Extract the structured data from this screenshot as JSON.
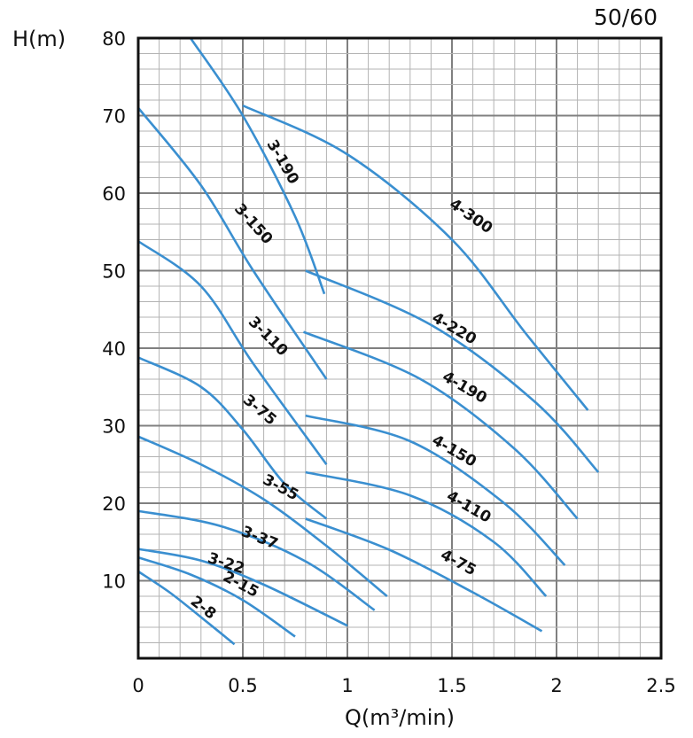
{
  "chart_data": {
    "type": "line",
    "title": "",
    "corner_label": "50/60",
    "xlabel": "Q(m³/min)",
    "ylabel": "H(m)",
    "xlim": [
      0,
      2.5
    ],
    "ylim": [
      0,
      80
    ],
    "x_ticks": [
      "0",
      "0.5",
      "1",
      "1.5",
      "2",
      "2.5"
    ],
    "y_ticks": [
      "10",
      "20",
      "30",
      "40",
      "50",
      "60",
      "70",
      "80"
    ],
    "grid": true,
    "series_color": "#3a8fd0",
    "series": [
      {
        "name": "2-8",
        "points": [
          [
            0,
            11.2
          ],
          [
            0.15,
            8.5
          ],
          [
            0.3,
            5.3
          ],
          [
            0.46,
            1.8
          ]
        ]
      },
      {
        "name": "2-15",
        "points": [
          [
            0,
            13
          ],
          [
            0.25,
            10.8
          ],
          [
            0.5,
            7.5
          ],
          [
            0.75,
            2.8
          ]
        ]
      },
      {
        "name": "3-22",
        "points": [
          [
            0,
            14.1
          ],
          [
            0.3,
            12.6
          ],
          [
            0.6,
            9.5
          ],
          [
            1.0,
            4.2
          ]
        ]
      },
      {
        "name": "3-37",
        "points": [
          [
            0,
            19
          ],
          [
            0.4,
            17
          ],
          [
            0.8,
            12.5
          ],
          [
            1.13,
            6.2
          ]
        ]
      },
      {
        "name": "3-55",
        "points": [
          [
            0,
            28.6
          ],
          [
            0.3,
            25
          ],
          [
            0.6,
            20.5
          ],
          [
            0.9,
            14.5
          ],
          [
            1.19,
            8
          ]
        ]
      },
      {
        "name": "3-75",
        "points": [
          [
            0,
            38.8
          ],
          [
            0.3,
            35
          ],
          [
            0.5,
            29.5
          ],
          [
            0.7,
            22.5
          ],
          [
            0.9,
            18
          ]
        ]
      },
      {
        "name": "3-110",
        "points": [
          [
            0,
            53.8
          ],
          [
            0.3,
            48
          ],
          [
            0.55,
            38
          ],
          [
            0.9,
            25
          ]
        ]
      },
      {
        "name": "3-150",
        "points": [
          [
            0,
            71
          ],
          [
            0.3,
            61
          ],
          [
            0.55,
            50
          ],
          [
            0.9,
            36
          ]
        ]
      },
      {
        "name": "3-190",
        "points": [
          [
            0.25,
            80
          ],
          [
            0.5,
            70
          ],
          [
            0.75,
            57
          ],
          [
            0.89,
            47
          ]
        ]
      },
      {
        "name": "4-75",
        "points": [
          [
            0.8,
            18
          ],
          [
            1.2,
            14
          ],
          [
            1.6,
            8.5
          ],
          [
            1.93,
            3.5
          ]
        ]
      },
      {
        "name": "4-110",
        "points": [
          [
            0.8,
            24
          ],
          [
            1.3,
            21
          ],
          [
            1.7,
            15
          ],
          [
            1.95,
            8
          ]
        ]
      },
      {
        "name": "4-150",
        "points": [
          [
            0.8,
            31.3
          ],
          [
            1.3,
            28
          ],
          [
            1.75,
            20
          ],
          [
            2.04,
            12
          ]
        ]
      },
      {
        "name": "4-190",
        "points": [
          [
            0.79,
            42.1
          ],
          [
            1.35,
            36
          ],
          [
            1.8,
            27
          ],
          [
            2.1,
            18
          ]
        ]
      },
      {
        "name": "4-220",
        "points": [
          [
            0.8,
            50
          ],
          [
            1.4,
            43
          ],
          [
            1.9,
            33
          ],
          [
            2.2,
            24
          ]
        ]
      },
      {
        "name": "4-300",
        "points": [
          [
            0.5,
            71.3
          ],
          [
            1.0,
            65
          ],
          [
            1.5,
            54
          ],
          [
            1.85,
            42
          ],
          [
            2.15,
            32
          ]
        ]
      }
    ],
    "labels": [
      {
        "text": "2-8",
        "at": [
          0.31,
          6.5
        ],
        "angle": 38
      },
      {
        "text": "2-15",
        "at": [
          0.49,
          9.5
        ],
        "angle": 28
      },
      {
        "text": "3-22",
        "at": [
          0.42,
          12.2
        ],
        "angle": 18
      },
      {
        "text": "3-37",
        "at": [
          0.58,
          15.5
        ],
        "angle": 22
      },
      {
        "text": "3-55",
        "at": [
          0.68,
          22.0
        ],
        "angle": 28
      },
      {
        "text": "3-75",
        "at": [
          0.58,
          32.0
        ],
        "angle": 40
      },
      {
        "text": "3-110",
        "at": [
          0.62,
          41.5
        ],
        "angle": 45
      },
      {
        "text": "3-150",
        "at": [
          0.55,
          56.0
        ],
        "angle": 48
      },
      {
        "text": "3-190",
        "at": [
          0.69,
          64.0
        ],
        "angle": 60
      },
      {
        "text": "4-75",
        "at": [
          1.53,
          12.3
        ],
        "angle": 28
      },
      {
        "text": "4-110",
        "at": [
          1.58,
          19.5
        ],
        "angle": 30
      },
      {
        "text": "4-150",
        "at": [
          1.51,
          26.7
        ],
        "angle": 30
      },
      {
        "text": "4-190",
        "at": [
          1.56,
          34.9
        ],
        "angle": 30
      },
      {
        "text": "4-220",
        "at": [
          1.51,
          42.5
        ],
        "angle": 30
      },
      {
        "text": "4-300",
        "at": [
          1.59,
          57.0
        ],
        "angle": 35
      }
    ]
  }
}
